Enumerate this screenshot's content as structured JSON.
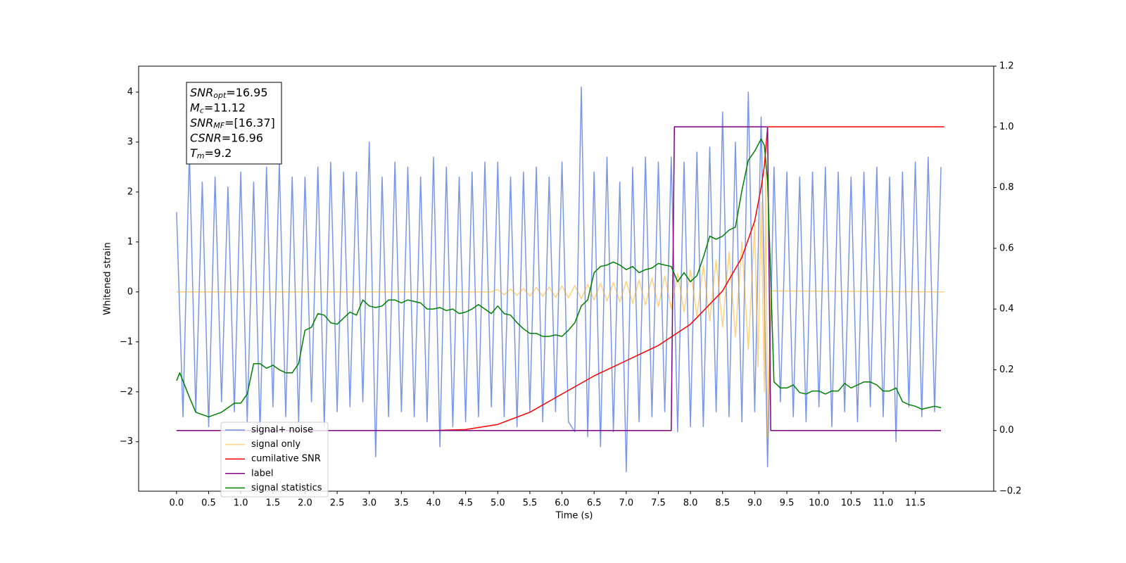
{
  "chart_data": {
    "type": "line",
    "x_label": "Time (s)",
    "y_label": "Whitened strain",
    "xlim": [
      -0.59,
      12.72
    ],
    "ylim": [
      -3.99,
      4.52
    ],
    "y2lim": [
      -0.2,
      1.2
    ],
    "xticks": [
      {
        "value": 0,
        "label": "0.0"
      },
      {
        "value": 0.5,
        "label": "0.5"
      },
      {
        "value": 1,
        "label": "1.0"
      },
      {
        "value": 1.5,
        "label": "1.5"
      },
      {
        "value": 2,
        "label": "2.0"
      },
      {
        "value": 2.5,
        "label": "2.5"
      },
      {
        "value": 3,
        "label": "3.0"
      },
      {
        "value": 3.5,
        "label": "3.5"
      },
      {
        "value": 4,
        "label": "4.0"
      },
      {
        "value": 4.5,
        "label": "4.5"
      },
      {
        "value": 5,
        "label": "5.0"
      },
      {
        "value": 5.5,
        "label": "5.5"
      },
      {
        "value": 6,
        "label": "6.0"
      },
      {
        "value": 6.5,
        "label": "6.5"
      },
      {
        "value": 7,
        "label": "7.0"
      },
      {
        "value": 7.5,
        "label": "7.5"
      },
      {
        "value": 8,
        "label": "8.0"
      },
      {
        "value": 8.5,
        "label": "8.5"
      },
      {
        "value": 9,
        "label": "9.0"
      },
      {
        "value": 9.5,
        "label": "9.5"
      },
      {
        "value": 10,
        "label": "10.0"
      },
      {
        "value": 10.5,
        "label": "10.5"
      },
      {
        "value": 11,
        "label": "11.0"
      },
      {
        "value": 11.5,
        "label": "11.5"
      }
    ],
    "yticks": [
      {
        "value": -3,
        "label": "−3"
      },
      {
        "value": -2,
        "label": "−2"
      },
      {
        "value": -1,
        "label": "−1"
      },
      0,
      1,
      2,
      3,
      4
    ],
    "y2ticks": [
      {
        "value": -0.2,
        "label": "−0.2"
      },
      {
        "value": 0,
        "label": "0.0"
      },
      0.2,
      0.4,
      0.6,
      0.8,
      {
        "value": 1,
        "label": "1.0"
      },
      1.2
    ],
    "legend": "lower left",
    "annotation": [
      {
        "main": "SNR",
        "sub": "opt",
        "text": "=16.95"
      },
      {
        "main": "M",
        "sub": "c",
        "text": "=11.12"
      },
      {
        "main": "SNR",
        "sub": "MF",
        "text": "=[16.37]"
      },
      {
        "main": "CSNR",
        "sub": null,
        "text": "=16.96"
      },
      {
        "main": "T",
        "sub": "m",
        "text": "=9.2"
      }
    ],
    "series": [
      {
        "name": "signal+ noise",
        "color": "#4169e1",
        "alpha": 0.7,
        "x": [
          0,
          0.1,
          0.2,
          0.3,
          0.4,
          0.5,
          0.6,
          0.7,
          0.8,
          0.9,
          1,
          1.1,
          1.2,
          1.3,
          1.4,
          1.5,
          1.6,
          1.7,
          1.8,
          1.9,
          2,
          2.1,
          2.2,
          2.3,
          2.4,
          2.5,
          2.6,
          2.7,
          2.8,
          2.9,
          3,
          3.1,
          3.2,
          3.3,
          3.4,
          3.5,
          3.6,
          3.7,
          3.8,
          3.9,
          4,
          4.1,
          4.2,
          4.3,
          4.4,
          4.5,
          4.6,
          4.7,
          4.8,
          4.9,
          5,
          5.1,
          5.2,
          5.3,
          5.4,
          5.5,
          5.6,
          5.7,
          5.8,
          5.9,
          6,
          6.1,
          6.2,
          6.3,
          6.4,
          6.5,
          6.6,
          6.7,
          6.8,
          6.9,
          7,
          7.1,
          7.2,
          7.3,
          7.4,
          7.5,
          7.6,
          7.7,
          7.8,
          7.9,
          8,
          8.1,
          8.2,
          8.3,
          8.4,
          8.5,
          8.6,
          8.7,
          8.8,
          8.9,
          9,
          9.1,
          9.2,
          9.3,
          9.4,
          9.5,
          9.6,
          9.7,
          9.8,
          9.9,
          10,
          10.1,
          10.2,
          10.3,
          10.4,
          10.5,
          10.6,
          10.7,
          10.8,
          10.9,
          11,
          11.1,
          11.2,
          11.3,
          11.4,
          11.5,
          11.6,
          11.7,
          11.8,
          11.9
        ],
        "values": [
          1.6,
          -2.5,
          2.8,
          -2.4,
          2.2,
          -2.7,
          2.3,
          -2.2,
          2.1,
          -2.4,
          2.4,
          -2.6,
          2.2,
          -2.8,
          2.5,
          -2.3,
          2.6,
          -2.5,
          2.3,
          -2.6,
          2.3,
          -2.2,
          2.5,
          -2.7,
          2.6,
          -2.4,
          2.4,
          -2.3,
          2.4,
          -2.2,
          3.0,
          -3.3,
          2.3,
          -2.5,
          2.6,
          -2.4,
          2.5,
          -2.5,
          2.3,
          -2.6,
          2.7,
          -3.1,
          2.5,
          -2.7,
          2.3,
          -2.6,
          2.4,
          -2.5,
          2.6,
          -2.3,
          2.6,
          -2.5,
          2.3,
          -2.7,
          2.4,
          -2.4,
          2.5,
          -2.6,
          2.3,
          -2.4,
          2.6,
          -2.6,
          -2.8,
          4.1,
          -2.9,
          2.4,
          -3.1,
          2.7,
          -2.8,
          2.2,
          -3.6,
          2.5,
          -2.6,
          2.7,
          -2.5,
          2.6,
          -2.4,
          2.7,
          -2.8,
          2.6,
          -2.7,
          2.8,
          -2.7,
          2.9,
          -2.4,
          3.6,
          -2.5,
          3.0,
          -2.6,
          4.0,
          -2.4,
          3.5,
          -3.5,
          2.5,
          -2.2,
          2.4,
          -2.5,
          2.3,
          -2.6,
          2.4,
          -2.3,
          2.5,
          -2.7,
          2.4,
          -2.4,
          2.3,
          -2.6,
          2.4,
          -2.3,
          2.5,
          -2.5,
          2.3,
          -3.0,
          2.4,
          -2.3,
          2.6,
          -2.5,
          2.7,
          -2.4,
          2.5
        ]
      },
      {
        "name": "signal only",
        "color": "#ffa500",
        "alpha": 0.5,
        "x": [
          0,
          4.9,
          5,
          5.1,
          5.2,
          5.3,
          5.4,
          5.5,
          5.6,
          5.7,
          5.8,
          5.9,
          6,
          6.1,
          6.2,
          6.3,
          6.4,
          6.5,
          6.6,
          6.7,
          6.8,
          6.9,
          7,
          7.1,
          7.2,
          7.3,
          7.4,
          7.5,
          7.6,
          7.7,
          7.8,
          7.9,
          8,
          8.1,
          8.2,
          8.3,
          8.4,
          8.5,
          8.6,
          8.7,
          8.8,
          8.9,
          9,
          9.05,
          9.1,
          9.15,
          9.17,
          9.2,
          9.25,
          11.95
        ],
        "values": [
          0,
          0,
          0.05,
          -0.06,
          0.06,
          -0.07,
          0.07,
          -0.08,
          0.09,
          -0.09,
          0.1,
          -0.11,
          0.12,
          -0.12,
          0.13,
          -0.14,
          0.15,
          -0.16,
          0.17,
          -0.18,
          0.19,
          -0.2,
          0.21,
          -0.23,
          0.24,
          -0.26,
          0.28,
          -0.3,
          0.32,
          -0.34,
          0.37,
          -0.4,
          0.44,
          -0.48,
          0.53,
          -0.58,
          0.64,
          -0.7,
          0.8,
          -0.9,
          1.0,
          -1.15,
          1.35,
          -1.5,
          1.8,
          -2.0,
          2.4,
          -2.9,
          0.02,
          0
        ]
      },
      {
        "name": "cumilative SNR",
        "color": "#ff0000",
        "axis": "y2",
        "x": [
          0,
          4,
          4.5,
          5,
          5.5,
          6,
          6.5,
          7,
          7.5,
          8,
          8.5,
          8.8,
          9,
          9.1,
          9.15,
          9.2,
          9.25,
          11.95
        ],
        "values": [
          0,
          0,
          0.003,
          0.02,
          0.06,
          0.12,
          0.18,
          0.23,
          0.28,
          0.35,
          0.46,
          0.57,
          0.69,
          0.8,
          0.87,
          1,
          1,
          1
        ]
      },
      {
        "name": "label",
        "color": "#800080",
        "axis": "y2",
        "x": [
          0,
          7.7,
          7.75,
          9.2,
          9.25,
          11.9
        ],
        "values": [
          0,
          0,
          1,
          1,
          0,
          0
        ]
      },
      {
        "name": "signal statistics",
        "color": "#008000",
        "axis": "y2",
        "x": [
          0,
          0.05,
          0.2,
          0.3,
          0.5,
          0.7,
          0.8,
          0.9,
          1,
          1.1,
          1.2,
          1.3,
          1.4,
          1.5,
          1.6,
          1.7,
          1.8,
          1.9,
          2,
          2.1,
          2.2,
          2.3,
          2.4,
          2.5,
          2.6,
          2.7,
          2.8,
          2.9,
          3,
          3.1,
          3.2,
          3.3,
          3.4,
          3.5,
          3.6,
          3.7,
          3.8,
          3.9,
          4,
          4.1,
          4.2,
          4.3,
          4.4,
          4.5,
          4.6,
          4.7,
          4.8,
          4.9,
          5,
          5.1,
          5.2,
          5.3,
          5.4,
          5.5,
          5.6,
          5.7,
          5.8,
          5.9,
          6,
          6.1,
          6.2,
          6.3,
          6.4,
          6.5,
          6.6,
          6.7,
          6.8,
          6.9,
          7,
          7.1,
          7.2,
          7.3,
          7.4,
          7.5,
          7.6,
          7.7,
          7.8,
          7.9,
          8,
          8.1,
          8.2,
          8.3,
          8.4,
          8.5,
          8.6,
          8.7,
          8.8,
          8.9,
          9,
          9.1,
          9.15,
          9.2,
          9.25,
          9.3,
          9.4,
          9.5,
          9.6,
          9.7,
          9.8,
          9.9,
          10,
          10.1,
          10.2,
          10.3,
          10.4,
          10.5,
          10.6,
          10.7,
          10.8,
          10.9,
          11,
          11.1,
          11.2,
          11.3,
          11.4,
          11.5,
          11.6,
          11.7,
          11.8,
          11.9
        ],
        "values": [
          0.164,
          0.19,
          0.11,
          0.06,
          0.045,
          0.06,
          0.075,
          0.09,
          0.09,
          0.12,
          0.22,
          0.22,
          0.205,
          0.215,
          0.2,
          0.19,
          0.19,
          0.22,
          0.33,
          0.34,
          0.385,
          0.38,
          0.355,
          0.35,
          0.37,
          0.39,
          0.38,
          0.43,
          0.41,
          0.405,
          0.41,
          0.43,
          0.43,
          0.42,
          0.43,
          0.425,
          0.42,
          0.4,
          0.4,
          0.405,
          0.395,
          0.4,
          0.385,
          0.39,
          0.4,
          0.415,
          0.4,
          0.385,
          0.41,
          0.385,
          0.38,
          0.355,
          0.335,
          0.32,
          0.32,
          0.31,
          0.31,
          0.315,
          0.31,
          0.33,
          0.355,
          0.41,
          0.43,
          0.52,
          0.54,
          0.545,
          0.555,
          0.545,
          0.53,
          0.54,
          0.52,
          0.53,
          0.535,
          0.55,
          0.545,
          0.54,
          0.49,
          0.52,
          0.49,
          0.51,
          0.57,
          0.64,
          0.63,
          0.64,
          0.66,
          0.67,
          0.79,
          0.89,
          0.92,
          0.96,
          0.94,
          0.82,
          0.5,
          0.16,
          0.14,
          0.14,
          0.15,
          0.125,
          0.12,
          0.13,
          0.13,
          0.12,
          0.13,
          0.13,
          0.155,
          0.14,
          0.15,
          0.16,
          0.16,
          0.15,
          0.13,
          0.13,
          0.14,
          0.095,
          0.085,
          0.08,
          0.07,
          0.075,
          0.08,
          0.075
        ]
      }
    ]
  }
}
